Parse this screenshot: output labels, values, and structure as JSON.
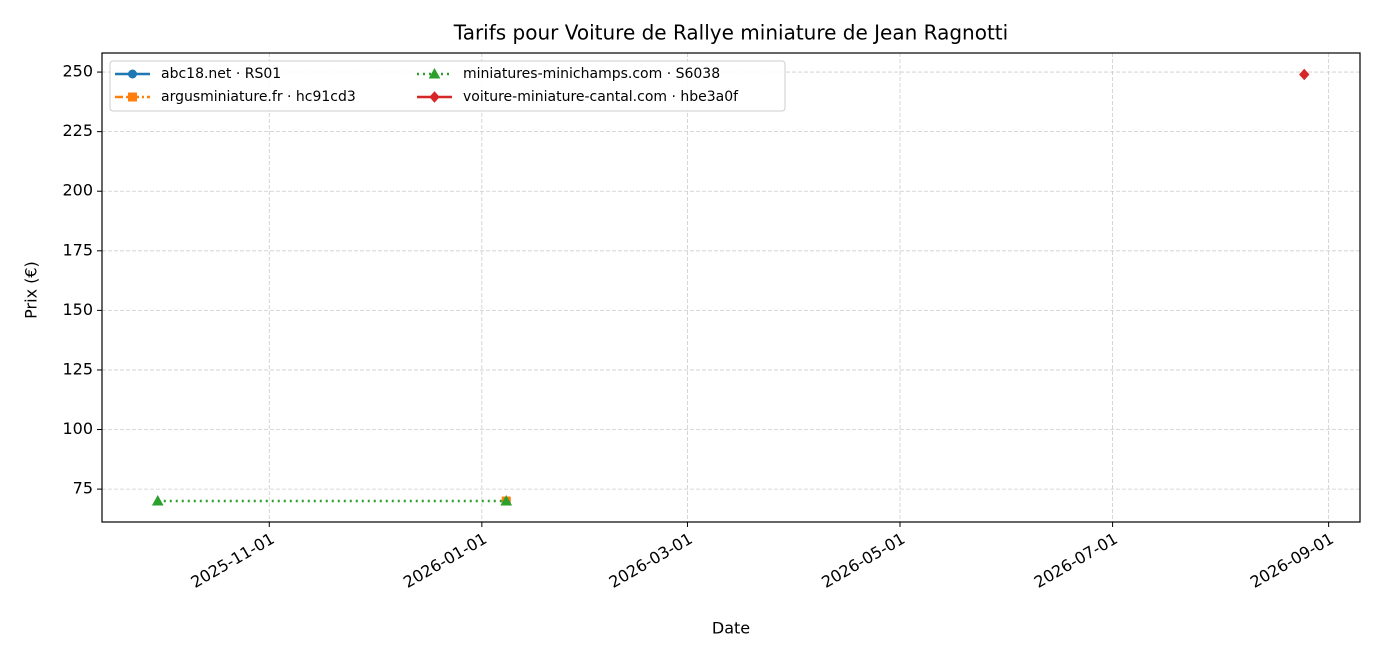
{
  "chart_data": {
    "type": "line",
    "title": "Tarifs pour Voiture de Rallye miniature de Jean Ragnotti",
    "xlabel": "Date",
    "ylabel": "Prix (€)",
    "xlim": [
      "2025-09-14",
      "2026-09-10"
    ],
    "xticks": [
      "2025-11-01",
      "2026-01-01",
      "2026-03-01",
      "2026-05-01",
      "2026-07-01",
      "2026-09-01"
    ],
    "ylim": [
      61.2,
      258
    ],
    "yticks": [
      75,
      100,
      125,
      150,
      175,
      200,
      225,
      250
    ],
    "grid": true,
    "legend_position": "upper-left",
    "legend_columns": 2,
    "series": [
      {
        "name": "abc18.net · RS01",
        "color": "#1f77b4",
        "linestyle": "solid",
        "marker": "circle",
        "x": [
          "2026-01-08"
        ],
        "values": [
          70
        ]
      },
      {
        "name": "argusminiature.fr · hc91cd3",
        "color": "#ff7f0e",
        "linestyle": "dashdot",
        "marker": "square",
        "x": [
          "2026-01-08"
        ],
        "values": [
          70
        ]
      },
      {
        "name": "miniatures-minichamps.com · S6038",
        "color": "#2ca02c",
        "linestyle": "dotted",
        "marker": "triangle",
        "x": [
          "2025-09-30",
          "2026-01-08"
        ],
        "values": [
          70,
          70
        ]
      },
      {
        "name": "voiture-miniature-cantal.com · hbe3a0f",
        "color": "#d62728",
        "linestyle": "solid",
        "marker": "diamond",
        "x": [
          "2026-08-25"
        ],
        "values": [
          249
        ]
      }
    ]
  }
}
